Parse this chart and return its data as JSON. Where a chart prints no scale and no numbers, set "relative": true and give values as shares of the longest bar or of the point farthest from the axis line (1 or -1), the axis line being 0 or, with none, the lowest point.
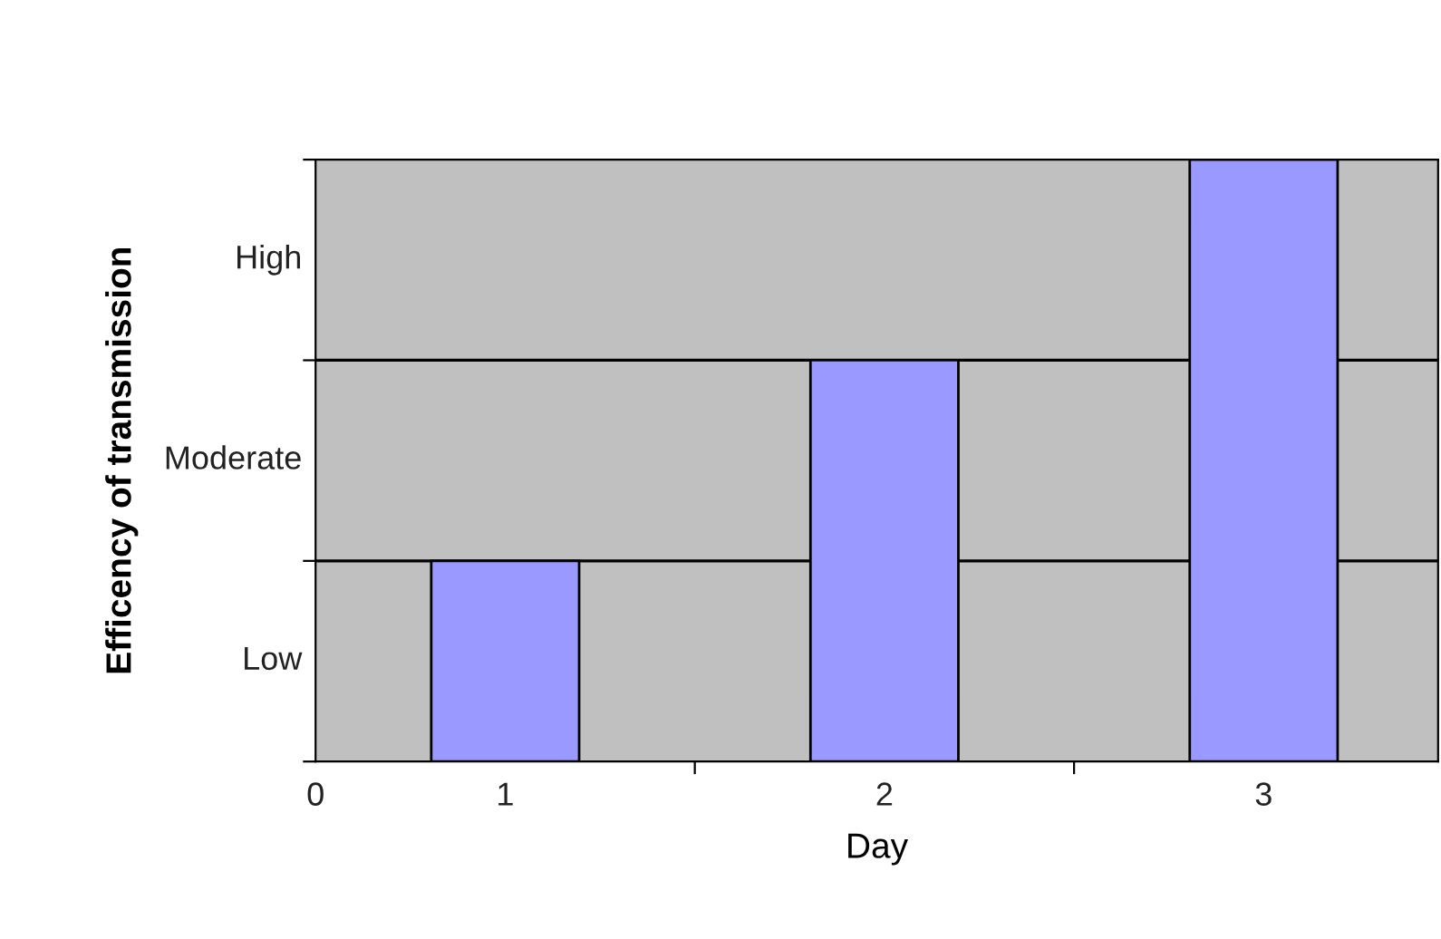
{
  "chart_data": {
    "type": "bar",
    "xlabel": "Day",
    "ylabel": "Efficency of transmission",
    "x": [
      0.5,
      1.5,
      2.5
    ],
    "values": [
      0.3333,
      0.6667,
      1
    ],
    "color": "#9999ff",
    "relative": true,
    "xlim": [
      0,
      2.96
    ],
    "xticks": [
      {
        "value": 0,
        "label": "0"
      },
      {
        "value": 0.5,
        "label": "1"
      },
      {
        "value": 1,
        "label": null
      },
      {
        "value": 1.5,
        "label": "2"
      },
      {
        "value": 2,
        "label": null
      },
      {
        "value": 2.5,
        "label": "3"
      }
    ],
    "annotations": [
      "Low",
      "Moderate",
      "High"
    ],
    "ref_lines": [
      {
        "axis": "y",
        "value": 0.3333,
        "color": "#000000"
      },
      {
        "axis": "y",
        "value": 0.6667,
        "color": "#000000"
      }
    ],
    "legend": false
  }
}
